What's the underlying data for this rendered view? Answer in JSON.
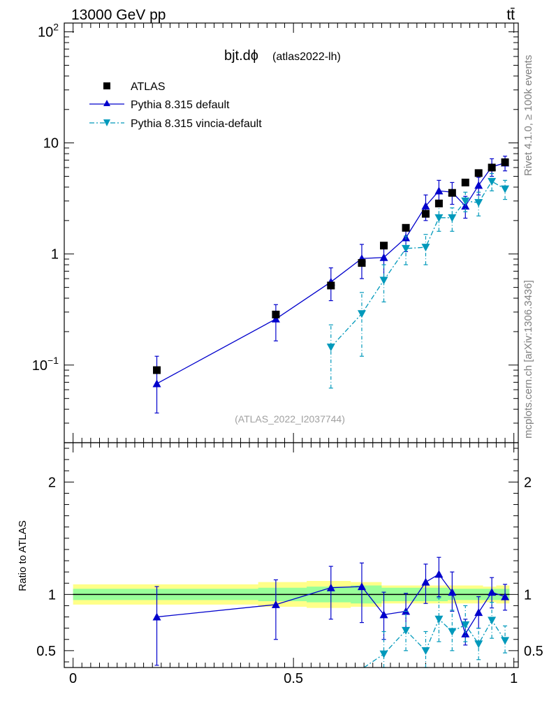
{
  "header": {
    "energy": "13000 GeV pp",
    "process": "tt̄"
  },
  "side_labels": {
    "rivet": "Rivet 4.1.0, ≥ 100k events",
    "mcplots": "mcplots.cern.ch [arXiv:1306.3436]"
  },
  "colors": {
    "atlas": "#000000",
    "default": "#0000cc",
    "vincia": "#0099bb",
    "band_inner": "#99ff99",
    "band_outer": "#ffff88"
  },
  "chart_data": [
    {
      "type": "scatter",
      "panel": "main",
      "title": "bjt.dϕ",
      "subtitle": "(atlas2022-lh)",
      "watermark": "(ATLAS_2022_I2037744)",
      "xlabel": "",
      "ylabel": "",
      "yscale": "log",
      "ylim": [
        0.02,
        120
      ],
      "xlim": [
        -0.02,
        1.01
      ],
      "yticks": [
        {
          "value": 0.1,
          "base": "10",
          "exp": "−1"
        },
        {
          "value": 1,
          "label": "1"
        },
        {
          "value": 10,
          "label": "10"
        },
        {
          "value": 100,
          "base": "10",
          "exp": "2"
        }
      ],
      "legend": [
        "ATLAS",
        "Pythia 8.315 default",
        "Pythia 8.315 vincia-default"
      ],
      "series": [
        {
          "name": "ATLAS",
          "x": [
            0.19,
            0.46,
            0.585,
            0.655,
            0.705,
            0.755,
            0.8,
            0.83,
            0.86,
            0.89,
            0.92,
            0.95,
            0.98
          ],
          "y": [
            0.09,
            0.285,
            0.52,
            0.83,
            1.19,
            1.72,
            2.3,
            2.85,
            3.55,
            4.4,
            5.35,
            6.0,
            6.7
          ],
          "ylo": [
            0.09,
            0.285,
            0.52,
            0.83,
            1.19,
            1.72,
            2.3,
            2.85,
            3.55,
            4.4,
            5.35,
            6.0,
            6.7
          ],
          "yhi": [
            0.09,
            0.285,
            0.52,
            0.83,
            1.19,
            1.72,
            2.3,
            2.85,
            3.55,
            4.4,
            5.35,
            6.0,
            6.7
          ]
        },
        {
          "name": "Pythia 8.315 default",
          "x": [
            0.19,
            0.46,
            0.585,
            0.655,
            0.705,
            0.755,
            0.8,
            0.83,
            0.86,
            0.89,
            0.92,
            0.95,
            0.98
          ],
          "y": [
            0.068,
            0.26,
            0.56,
            0.91,
            0.93,
            1.4,
            2.7,
            3.7,
            3.6,
            2.7,
            4.15,
            6.1,
            6.6
          ],
          "ylo": [
            0.037,
            0.165,
            0.38,
            0.6,
            0.6,
            1.05,
            2.0,
            2.8,
            2.8,
            2.1,
            3.4,
            5.0,
            5.6
          ],
          "yhi": [
            0.12,
            0.35,
            0.75,
            1.22,
            1.26,
            1.75,
            3.4,
            4.6,
            4.4,
            3.3,
            4.9,
            7.2,
            7.6
          ]
        },
        {
          "name": "Pythia 8.315 vincia-default",
          "x": [
            0.585,
            0.655,
            0.705,
            0.755,
            0.8,
            0.83,
            0.86,
            0.89,
            0.92,
            0.95,
            0.98
          ],
          "y": [
            0.145,
            0.29,
            0.58,
            1.12,
            1.15,
            2.12,
            2.12,
            3.0,
            2.9,
            4.5,
            3.85
          ],
          "ylo": [
            0.062,
            0.12,
            0.37,
            0.8,
            0.8,
            1.6,
            1.6,
            2.4,
            2.2,
            3.7,
            3.1
          ],
          "yhi": [
            0.23,
            0.45,
            0.8,
            1.45,
            1.5,
            2.7,
            2.6,
            3.6,
            3.6,
            5.3,
            4.6
          ]
        }
      ]
    },
    {
      "type": "scatter",
      "panel": "ratio",
      "xlabel": "",
      "ylabel": "Ratio to ATLAS",
      "ylim": [
        0.35,
        2.35
      ],
      "xlim": [
        -0.02,
        1.01
      ],
      "yticks": [
        0.5,
        1,
        2
      ],
      "ytick_labels": [
        "0.5",
        "1",
        "2"
      ],
      "xticks": [
        0,
        0.5,
        1
      ],
      "xtick_labels": [
        "0",
        "0.5",
        "1"
      ],
      "bands": {
        "x": [
          0.0,
          0.38,
          0.42,
          0.53,
          0.63,
          0.7,
          0.85,
          0.9,
          0.93,
          0.96,
          0.99
        ],
        "inner": [
          0.05,
          0.05,
          0.06,
          0.07,
          0.08,
          0.06,
          0.05,
          0.05,
          0.05,
          0.05,
          0.05
        ],
        "outer": [
          0.09,
          0.09,
          0.11,
          0.12,
          0.11,
          0.08,
          0.08,
          0.08,
          0.07,
          0.08,
          0.08
        ]
      },
      "series": [
        {
          "name": "Pythia 8.315 default",
          "x": [
            0.19,
            0.46,
            0.585,
            0.655,
            0.705,
            0.755,
            0.8,
            0.83,
            0.86,
            0.89,
            0.92,
            0.95,
            0.98
          ],
          "y": [
            0.8,
            0.91,
            1.06,
            1.07,
            0.82,
            0.85,
            1.11,
            1.18,
            1.02,
            0.65,
            0.84,
            1.02,
            0.98
          ],
          "ylo": [
            0.37,
            0.6,
            0.78,
            0.75,
            0.6,
            0.7,
            0.92,
            0.98,
            0.85,
            0.55,
            0.7,
            0.88,
            0.86
          ],
          "yhi": [
            1.07,
            1.13,
            1.25,
            1.28,
            1.02,
            1.01,
            1.27,
            1.33,
            1.2,
            0.78,
            0.98,
            1.15,
            1.09
          ]
        },
        {
          "name": "Pythia 8.315 vincia-default",
          "x": [
            0.66,
            0.705,
            0.755,
            0.8,
            0.83,
            0.86,
            0.89,
            0.92,
            0.95,
            0.98
          ],
          "y": [
            0.35,
            0.47,
            0.68,
            0.5,
            0.78,
            0.67,
            0.73,
            0.56,
            0.77,
            0.59
          ],
          "ylo": [
            0.35,
            0.33,
            0.5,
            0.35,
            0.58,
            0.5,
            0.58,
            0.42,
            0.61,
            0.48
          ],
          "yhi": [
            0.35,
            0.67,
            0.85,
            0.67,
            0.97,
            0.86,
            0.9,
            0.7,
            0.93,
            0.72
          ]
        }
      ]
    }
  ]
}
